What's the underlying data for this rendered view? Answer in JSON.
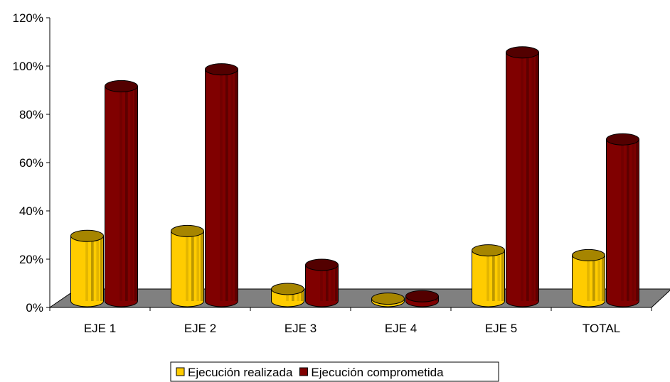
{
  "chart_data": {
    "type": "bar",
    "subtype": "3d-cylinder",
    "title": "",
    "xlabel": "",
    "ylabel": "",
    "categories": [
      "EJE 1",
      "EJE 2",
      "EJE 3",
      "EJE 4",
      "EJE 5",
      "TOTAL"
    ],
    "series": [
      {
        "name": "Ejecución realizada",
        "color": "#FFCC00",
        "values": [
          0.27,
          0.29,
          0.05,
          0.01,
          0.21,
          0.19
        ]
      },
      {
        "name": "Ejecución comprometida",
        "color": "#800000",
        "values": [
          0.89,
          0.96,
          0.15,
          0.02,
          1.03,
          0.67
        ]
      }
    ],
    "ylim": [
      0,
      1.2
    ],
    "yticks": [
      "0%",
      "20%",
      "40%",
      "60%",
      "80%",
      "100%",
      "120%"
    ],
    "grid": false,
    "floor_color": "#808080",
    "legend_position": "bottom"
  }
}
